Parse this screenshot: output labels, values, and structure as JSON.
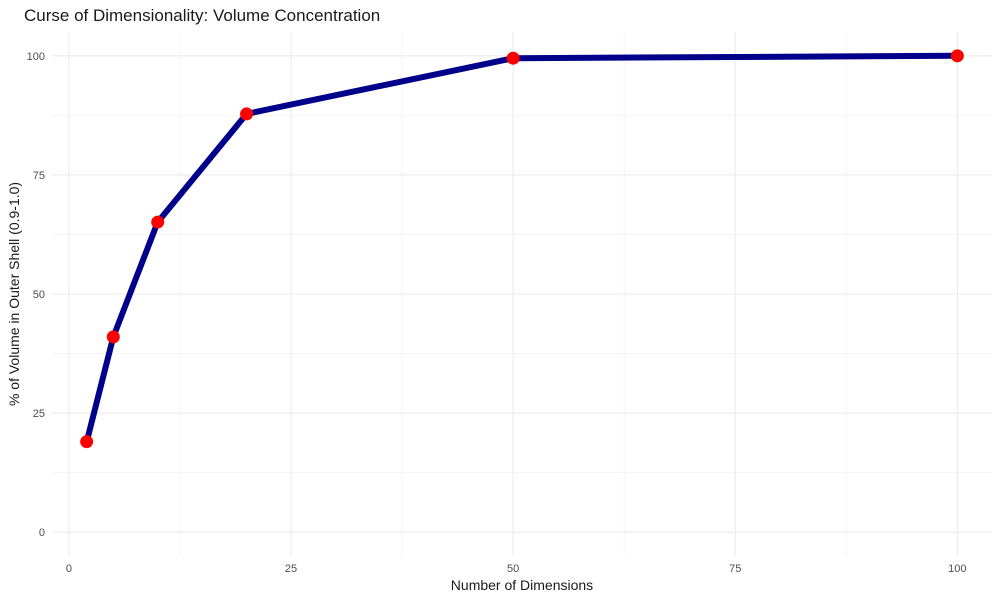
{
  "chart_data": {
    "type": "line",
    "title": "Curse of Dimensionality: Volume Concentration",
    "xlabel": "Number of Dimensions",
    "ylabel": "% of Volume in Outer Shell (0.9-1.0)",
    "x": [
      2,
      5,
      10,
      20,
      50,
      100
    ],
    "series": [
      {
        "values": [
          19.0,
          41.0,
          65.1,
          87.8,
          99.5,
          100.0
        ]
      }
    ],
    "xlim": [
      -1.9,
      103.9
    ],
    "ylim": [
      -5,
      105
    ],
    "x_ticks": [
      0,
      25,
      50,
      75,
      100
    ],
    "y_ticks": [
      0,
      25,
      50,
      75,
      100
    ],
    "x_tick_labels": [
      "0",
      "25",
      "50",
      "75",
      "100"
    ],
    "y_tick_labels": [
      "0",
      "25",
      "50",
      "75",
      "100"
    ],
    "grid": true,
    "legend": "none",
    "colors": {
      "line": "#00008b",
      "point": "#ff0000",
      "grid": "#ebebeb"
    }
  }
}
